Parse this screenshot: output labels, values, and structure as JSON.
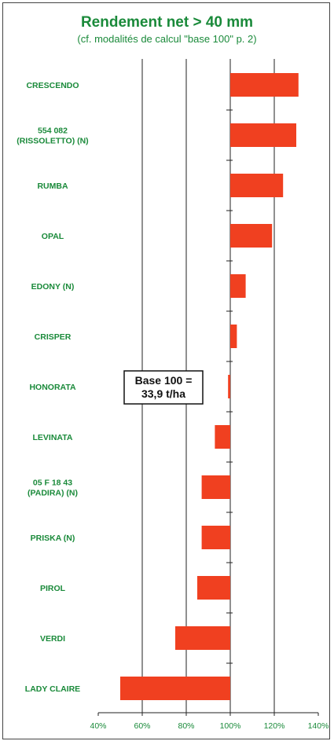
{
  "chart_data": {
    "type": "bar",
    "orientation": "horizontal",
    "title": "Rendement net > 40 mm",
    "subtitle": "(cf. modalités de calcul \"base 100\" p. 2)",
    "categories": [
      [
        "CRESCENDO"
      ],
      [
        "554 082",
        "(RISSOLETTO) (N)"
      ],
      [
        "RUMBA"
      ],
      [
        "OPAL"
      ],
      [
        "EDONY (N)"
      ],
      [
        "CRISPER"
      ],
      [
        "HONORATA"
      ],
      [
        "LEVINATA"
      ],
      [
        "05 F 18 43",
        "(PADIRA) (N)"
      ],
      [
        "PRISKA (N)"
      ],
      [
        "PIROL"
      ],
      [
        "VERDI"
      ],
      [
        "LADY CLAIRE"
      ]
    ],
    "values": [
      131,
      130,
      124,
      119,
      107,
      103,
      99,
      93,
      87,
      87,
      85,
      75,
      50
    ],
    "baseline": 100,
    "xlim": [
      40,
      140
    ],
    "xticks": [
      40,
      60,
      80,
      100,
      120,
      140
    ],
    "xtick_labels": [
      "40%",
      "60%",
      "80%",
      "100%",
      "120%",
      "140%"
    ],
    "grid": "vertical",
    "annotation": [
      "Base 100 =",
      "33,9 t/ha"
    ],
    "colors": {
      "bar": "#f04020",
      "text": "#1a8a3a",
      "grid": "#222222"
    }
  }
}
